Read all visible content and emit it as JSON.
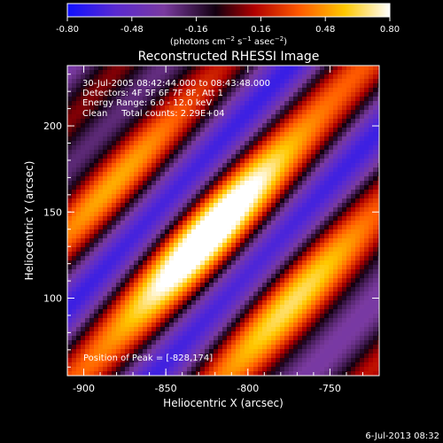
{
  "colorbar": {
    "ticks": [
      "-0.80",
      "-0.48",
      "-0.16",
      "0.16",
      "0.48",
      "0.80"
    ],
    "tick_values": [
      -0.8,
      -0.48,
      -0.16,
      0.16,
      0.48,
      0.8
    ],
    "range": [
      -0.8,
      0.8
    ],
    "unit_prefix": "(photons cm",
    "unit_exp1": "−2",
    "unit_mid": " s",
    "unit_exp2": "−1",
    "unit_mid2": " asec",
    "unit_exp3": "−2",
    "unit_suffix": ")"
  },
  "plot": {
    "title": "Reconstructed RHESSI Image",
    "info_lines": [
      "30-Jul-2005 08:42:44.000 to 08:43:48.000",
      "Detectors: 4F 5F 6F 7F 8F, Att 1",
      "Energy Range: 6.0 - 12.0 keV",
      "Clean     Total counts: 2.29E+04"
    ],
    "peak_label": "Position of Peak = [-828,174]",
    "xlabel": "Heliocentric X (arcsec)",
    "ylabel": "Heliocentric Y (arcsec)",
    "xlim": [
      -910,
      -720
    ],
    "ylim": [
      55,
      235
    ],
    "xticks": [
      -900,
      -850,
      -800,
      -750
    ],
    "yticks": [
      100,
      150,
      200
    ],
    "xtick_labels": [
      "-900",
      "-850",
      "-800",
      "-750"
    ],
    "ytick_labels": [
      "100",
      "150",
      "200"
    ],
    "colormap": "blue-purple-black-red-orange-yellow-white",
    "peak": [
      -828,
      174
    ]
  },
  "footer": {
    "date": "6-Jul-2013 08:32"
  }
}
